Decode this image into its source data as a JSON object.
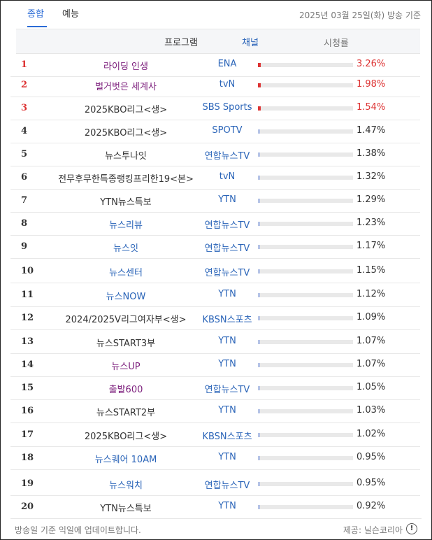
{
  "tabs": {
    "active": "종합",
    "other": "예능"
  },
  "date": "2025년 03월 25일(화) 방송 기준",
  "headers": {
    "program": "프로그램",
    "channel": "채널",
    "rating": "시청률"
  },
  "rows": [
    {
      "rank": "1",
      "program": "라이딩 인생",
      "channel": "ENA",
      "rating": "3.26%",
      "bar_fraction": 0.03,
      "top": true,
      "program_color": "purple"
    },
    {
      "rank": "2",
      "program": "벌거벗은 세계사",
      "channel": "tvN",
      "rating": "1.98%",
      "bar_fraction": 0.03,
      "top": true,
      "program_color": "purple"
    },
    {
      "rank": "3",
      "program": "2025KBO리그<생>",
      "channel": "SBS Sports",
      "rating": "1.54%",
      "bar_fraction": 0.03,
      "top": true,
      "program_color": "black"
    },
    {
      "rank": "4",
      "program": "2025KBO리그<생>",
      "channel": "SPOTV",
      "rating": "1.47%",
      "bar_fraction": 0.02,
      "top": false,
      "program_color": "black"
    },
    {
      "rank": "5",
      "program": "뉴스투나잇",
      "channel": "연합뉴스TV",
      "rating": "1.38%",
      "bar_fraction": 0.02,
      "top": false,
      "program_color": "black"
    },
    {
      "rank": "6",
      "program": "전무후무한특종랭킹프리한19<본>",
      "channel": "tvN",
      "rating": "1.32%",
      "bar_fraction": 0.02,
      "top": false,
      "program_color": "black"
    },
    {
      "rank": "7",
      "program": "YTN뉴스특보",
      "channel": "YTN",
      "rating": "1.29%",
      "bar_fraction": 0.02,
      "top": false,
      "program_color": "black"
    },
    {
      "rank": "8",
      "program": "뉴스리뷰",
      "channel": "연합뉴스TV",
      "rating": "1.23%",
      "bar_fraction": 0.02,
      "top": false,
      "program_color": "blue"
    },
    {
      "rank": "9",
      "program": "뉴스잇",
      "channel": "연합뉴스TV",
      "rating": "1.17%",
      "bar_fraction": 0.02,
      "top": false,
      "program_color": "blue"
    },
    {
      "rank": "10",
      "program": "뉴스센터",
      "channel": "연합뉴스TV",
      "rating": "1.15%",
      "bar_fraction": 0.02,
      "top": false,
      "program_color": "blue"
    },
    {
      "rank": "11",
      "program": "뉴스NOW",
      "channel": "YTN",
      "rating": "1.12%",
      "bar_fraction": 0.02,
      "top": false,
      "program_color": "blue"
    },
    {
      "rank": "12",
      "program": "2024/2025V리그여자부<생>",
      "channel": "KBSN스포츠",
      "rating": "1.09%",
      "bar_fraction": 0.02,
      "top": false,
      "program_color": "black"
    },
    {
      "rank": "13",
      "program": "뉴스START3부",
      "channel": "YTN",
      "rating": "1.07%",
      "bar_fraction": 0.02,
      "top": false,
      "program_color": "black"
    },
    {
      "rank": "14",
      "program": "뉴스UP",
      "channel": "YTN",
      "rating": "1.07%",
      "bar_fraction": 0.02,
      "top": false,
      "program_color": "purple"
    },
    {
      "rank": "15",
      "program": "출발600",
      "channel": "연합뉴스TV",
      "rating": "1.05%",
      "bar_fraction": 0.02,
      "top": false,
      "program_color": "purple"
    },
    {
      "rank": "16",
      "program": "뉴스START2부",
      "channel": "YTN",
      "rating": "1.03%",
      "bar_fraction": 0.02,
      "top": false,
      "program_color": "black"
    },
    {
      "rank": "17",
      "program": "2025KBO리그<생>",
      "channel": "KBSN스포츠",
      "rating": "1.02%",
      "bar_fraction": 0.02,
      "top": false,
      "program_color": "black"
    },
    {
      "rank": "18",
      "program": "뉴스퀘어 10AM",
      "channel": "YTN",
      "rating": "0.95%",
      "bar_fraction": 0.02,
      "top": false,
      "program_color": "blue"
    },
    {
      "rank": "19",
      "program": "뉴스워치",
      "channel": "연합뉴스TV",
      "rating": "0.95%",
      "bar_fraction": 0.02,
      "top": false,
      "program_color": "blue"
    },
    {
      "rank": "20",
      "program": "YTN뉴스특보",
      "channel": "YTN",
      "rating": "0.92%",
      "bar_fraction": 0.02,
      "top": false,
      "program_color": "black"
    }
  ],
  "footer": {
    "note": "방송일 기준 익일에 업데이트합니다.",
    "provider": "제공: 닐슨코리아"
  }
}
